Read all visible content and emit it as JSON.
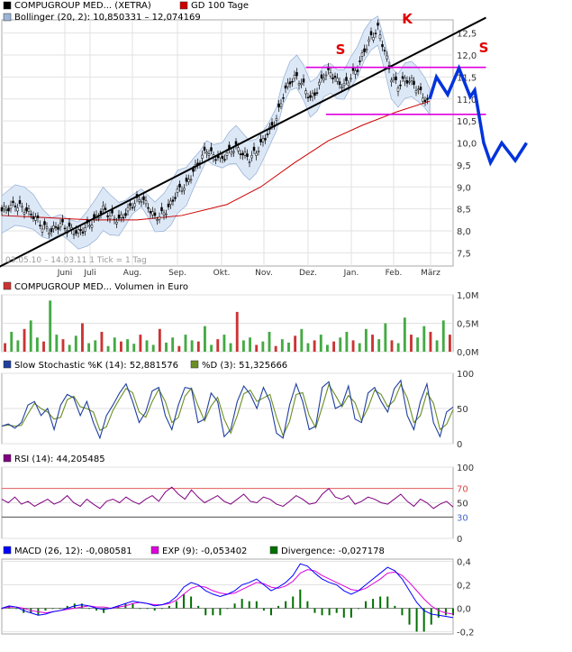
{
  "chart_data": [
    {
      "type": "candlestick",
      "panel": "price",
      "legend": [
        {
          "label": "COMPUGROUP MED... (XETRA)",
          "color": "#000000",
          "swatch": "black"
        },
        {
          "label": "GD 100 Tage",
          "color": "#cc0000",
          "swatch": "red"
        },
        {
          "label": "Bollinger (20, 2): 10,850331 – 12,074169",
          "color": "#9bb5d8",
          "swatch": "lightblue"
        }
      ],
      "x_tick_labels": [
        "Juni",
        "Juli",
        "Aug.",
        "Sep.",
        "Okt.",
        "Nov.",
        "Dez.",
        "Jan.",
        "Feb.",
        "März"
      ],
      "y_tick_labels": [
        "7,5",
        "8,0",
        "8,5",
        "9,0",
        "9,5",
        "10,0",
        "10,5",
        "11,0",
        "11,5",
        "12,0",
        "12,5"
      ],
      "ylim": [
        7.2,
        12.8
      ],
      "footnote": "03.05.10 – 14.03.11   1 Tick = 1 Tag",
      "pattern_labels": {
        "left_shoulder": "S",
        "head": "K",
        "right_shoulder": "S"
      },
      "price_path": [
        [
          0,
          8.45
        ],
        [
          6,
          8.6
        ],
        [
          10,
          8.5
        ],
        [
          14,
          8.35
        ],
        [
          18,
          8.1
        ],
        [
          22,
          8.0
        ],
        [
          26,
          8.15
        ],
        [
          30,
          8.05
        ],
        [
          34,
          7.95
        ],
        [
          38,
          8.1
        ],
        [
          42,
          8.3
        ],
        [
          45,
          8.5
        ],
        [
          48,
          8.35
        ],
        [
          52,
          8.25
        ],
        [
          55,
          8.4
        ],
        [
          58,
          8.6
        ],
        [
          62,
          8.75
        ],
        [
          65,
          8.55
        ],
        [
          68,
          8.3
        ],
        [
          72,
          8.4
        ],
        [
          75,
          8.6
        ],
        [
          78,
          8.9
        ],
        [
          82,
          9.05
        ],
        [
          85,
          9.35
        ],
        [
          88,
          9.6
        ],
        [
          91,
          9.85
        ],
        [
          94,
          9.7
        ],
        [
          98,
          9.65
        ],
        [
          101,
          9.8
        ],
        [
          104,
          9.9
        ],
        [
          107,
          9.75
        ],
        [
          110,
          9.65
        ],
        [
          113,
          9.8
        ],
        [
          116,
          10.05
        ],
        [
          119,
          10.3
        ],
        [
          122,
          10.55
        ],
        [
          125,
          11.1
        ],
        [
          128,
          11.4
        ],
        [
          131,
          11.5
        ],
        [
          134,
          11.3
        ],
        [
          137,
          11.0
        ],
        [
          140,
          11.2
        ],
        [
          143,
          11.55
        ],
        [
          146,
          11.6
        ],
        [
          149,
          11.4
        ],
        [
          152,
          11.3
        ],
        [
          155,
          11.5
        ],
        [
          158,
          11.7
        ],
        [
          161,
          12.1
        ],
        [
          164,
          12.4
        ],
        [
          167,
          12.6
        ],
        [
          170,
          12.1
        ],
        [
          173,
          11.5
        ],
        [
          176,
          11.3
        ],
        [
          179,
          11.45
        ],
        [
          182,
          11.4
        ],
        [
          185,
          11.2
        ],
        [
          188,
          11.0
        ],
        [
          190,
          10.85
        ]
      ],
      "gd100_path": [
        [
          0,
          8.35
        ],
        [
          20,
          8.3
        ],
        [
          40,
          8.25
        ],
        [
          60,
          8.25
        ],
        [
          80,
          8.35
        ],
        [
          100,
          8.6
        ],
        [
          115,
          9.0
        ],
        [
          130,
          9.55
        ],
        [
          145,
          10.05
        ],
        [
          160,
          10.4
        ],
        [
          175,
          10.7
        ],
        [
          190,
          10.95
        ]
      ],
      "trendlines": [
        {
          "name": "support",
          "from": [
            -8,
            7.0
          ],
          "to": [
            215,
            12.85
          ],
          "color": "#000000"
        },
        {
          "name": "neckline-upper",
          "from": [
            135,
            11.72
          ],
          "to": [
            215,
            11.72
          ],
          "color": "#e000e0"
        },
        {
          "name": "neckline-lower",
          "from": [
            144,
            10.65
          ],
          "to": [
            215,
            10.65
          ],
          "color": "#e000e0"
        }
      ],
      "projection": [
        [
          190,
          11.0
        ],
        [
          193,
          11.5
        ],
        [
          198,
          11.1
        ],
        [
          203,
          11.7
        ],
        [
          208,
          11.05
        ],
        [
          210,
          11.2
        ],
        [
          214,
          10.0
        ],
        [
          217,
          9.55
        ],
        [
          222,
          10.0
        ],
        [
          228,
          9.6
        ],
        [
          233,
          10.0
        ]
      ]
    },
    {
      "type": "bar",
      "panel": "volume",
      "legend": "COMPUGROUP MED... Volumen in Euro",
      "y_tick_labels": [
        "0,0M",
        "0,5M",
        "1,0M"
      ],
      "ylim": [
        0,
        1.0
      ],
      "up_color": "#44aa44",
      "down_color": "#cc3333",
      "values": [
        0.15,
        0.35,
        0.2,
        0.4,
        0.55,
        0.25,
        0.18,
        0.9,
        0.3,
        0.22,
        0.12,
        0.28,
        0.5,
        0.15,
        0.2,
        0.35,
        0.1,
        0.25,
        0.18,
        0.22,
        0.14,
        0.3,
        0.2,
        0.12,
        0.4,
        0.16,
        0.25,
        0.1,
        0.3,
        0.2,
        0.18,
        0.45,
        0.12,
        0.22,
        0.3,
        0.15,
        0.7,
        0.2,
        0.25,
        0.12,
        0.18,
        0.35,
        0.1,
        0.22,
        0.16,
        0.28,
        0.4,
        0.15,
        0.2,
        0.3,
        0.12,
        0.18,
        0.25,
        0.35,
        0.2,
        0.15,
        0.4,
        0.3,
        0.22,
        0.5,
        0.2,
        0.15,
        0.6,
        0.3,
        0.25,
        0.45,
        0.35,
        0.2,
        0.55,
        0.3
      ]
    },
    {
      "type": "line",
      "panel": "stochastic",
      "legend": [
        {
          "label": "Slow Stochastic %K (14): 52,881576",
          "color": "#1f3f9f"
        },
        {
          "label": "%D (3): 51,325666",
          "color": "#6b8e23"
        }
      ],
      "y_tick_labels": [
        "0",
        "50",
        "100"
      ],
      "ylim": [
        0,
        100
      ],
      "k_values": [
        25,
        28,
        22,
        30,
        55,
        60,
        40,
        50,
        20,
        55,
        70,
        65,
        40,
        60,
        30,
        8,
        40,
        55,
        72,
        85,
        60,
        30,
        45,
        75,
        80,
        40,
        20,
        55,
        80,
        78,
        30,
        35,
        72,
        60,
        10,
        20,
        60,
        82,
        70,
        50,
        80,
        60,
        15,
        8,
        55,
        85,
        60,
        20,
        25,
        80,
        88,
        50,
        55,
        82,
        35,
        30,
        72,
        80,
        60,
        45,
        78,
        90,
        40,
        20,
        60,
        85,
        30,
        10,
        45,
        52
      ]
    },
    {
      "type": "line",
      "panel": "rsi",
      "legend": [
        {
          "label": "RSI (14): 44,205485",
          "color": "#800080"
        }
      ],
      "y_tick_labels": [
        "0",
        "30",
        "50",
        "70",
        "100"
      ],
      "ylim": [
        0,
        100
      ],
      "levels": [
        30,
        70
      ],
      "values": [
        55,
        50,
        58,
        48,
        52,
        45,
        50,
        55,
        48,
        52,
        60,
        50,
        45,
        55,
        48,
        42,
        52,
        55,
        50,
        58,
        52,
        48,
        55,
        60,
        52,
        65,
        72,
        62,
        55,
        68,
        58,
        50,
        55,
        60,
        52,
        48,
        55,
        62,
        52,
        50,
        58,
        55,
        48,
        45,
        52,
        60,
        55,
        48,
        50,
        62,
        70,
        58,
        55,
        60,
        48,
        52,
        58,
        55,
        50,
        48,
        55,
        62,
        52,
        45,
        55,
        50,
        42,
        48,
        52,
        44
      ]
    },
    {
      "type": "line",
      "panel": "macd",
      "legend": [
        {
          "label": "MACD (26, 12): -0,080581",
          "color": "#0000ff"
        },
        {
          "label": "EXP (9): -0,053402",
          "color": "#dd00dd"
        },
        {
          "label": "Divergence: -0,027178",
          "color": "#007000"
        }
      ],
      "y_tick_labels": [
        "-0,2",
        "0,0",
        "0,2",
        "0,4"
      ],
      "ylim": [
        -0.22,
        0.42
      ],
      "macd_values": [
        0.0,
        0.02,
        0.01,
        -0.02,
        -0.04,
        -0.06,
        -0.05,
        -0.03,
        -0.02,
        0.0,
        0.02,
        0.03,
        0.02,
        0.0,
        -0.01,
        0.0,
        0.02,
        0.04,
        0.06,
        0.05,
        0.04,
        0.02,
        0.03,
        0.05,
        0.1,
        0.18,
        0.22,
        0.2,
        0.15,
        0.12,
        0.1,
        0.12,
        0.15,
        0.2,
        0.22,
        0.25,
        0.2,
        0.15,
        0.18,
        0.22,
        0.28,
        0.38,
        0.36,
        0.3,
        0.25,
        0.22,
        0.2,
        0.15,
        0.12,
        0.15,
        0.2,
        0.25,
        0.3,
        0.35,
        0.32,
        0.25,
        0.15,
        0.05,
        -0.02,
        -0.05,
        -0.06,
        -0.07,
        -0.08
      ],
      "exp_values": [
        0.0,
        0.01,
        0.01,
        0.0,
        -0.02,
        -0.03,
        -0.04,
        -0.03,
        -0.02,
        -0.01,
        0.0,
        0.01,
        0.02,
        0.01,
        0.01,
        0.0,
        0.01,
        0.02,
        0.04,
        0.05,
        0.04,
        0.03,
        0.03,
        0.04,
        0.07,
        0.12,
        0.17,
        0.19,
        0.18,
        0.15,
        0.13,
        0.12,
        0.13,
        0.16,
        0.19,
        0.22,
        0.21,
        0.18,
        0.17,
        0.19,
        0.23,
        0.3,
        0.33,
        0.32,
        0.28,
        0.25,
        0.22,
        0.19,
        0.16,
        0.15,
        0.17,
        0.21,
        0.25,
        0.3,
        0.31,
        0.28,
        0.22,
        0.15,
        0.08,
        0.02,
        -0.02,
        -0.04,
        -0.05
      ]
    }
  ]
}
